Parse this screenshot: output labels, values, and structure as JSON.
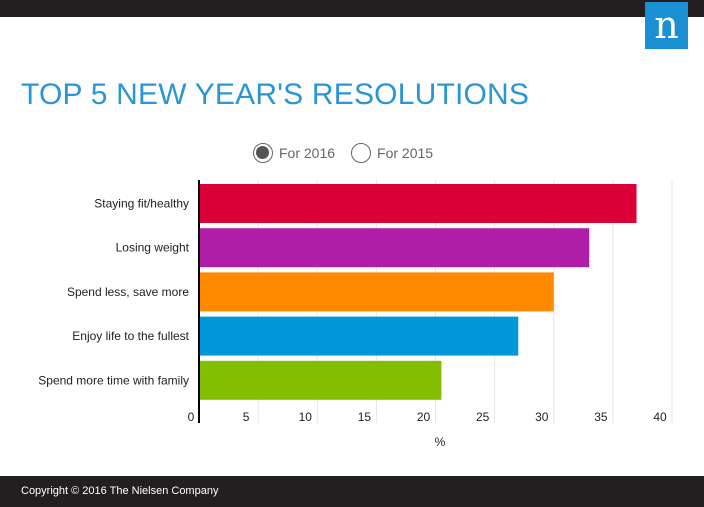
{
  "logo": {
    "letter": "n"
  },
  "chart_data": {
    "type": "bar",
    "orientation": "horizontal",
    "title": "TOP 5 NEW YEAR'S RESOLUTIONS",
    "categories": [
      "Staying fit/healthy",
      "Losing weight",
      "Spend less, save more",
      "Enjoy life to the fullest",
      "Spend more time with family"
    ],
    "series": [
      {
        "values": [
          37,
          33,
          30,
          27,
          20.5
        ]
      }
    ],
    "colors": [
      "#da0037",
      "#b01da6",
      "#ff8a00",
      "#0098d8",
      "#84be00"
    ],
    "xlabel": "%",
    "xlim": [
      0,
      40
    ],
    "xticks": [
      "0",
      "5",
      "10",
      "15",
      "20",
      "25",
      "30",
      "35",
      "40"
    ],
    "grid": true
  },
  "toggle": {
    "options": [
      {
        "label": "For 2016",
        "selected": true
      },
      {
        "label": "For 2015",
        "selected": false
      }
    ]
  },
  "footer": {
    "copyright": "Copyright © 2016 The Nielsen Company"
  }
}
